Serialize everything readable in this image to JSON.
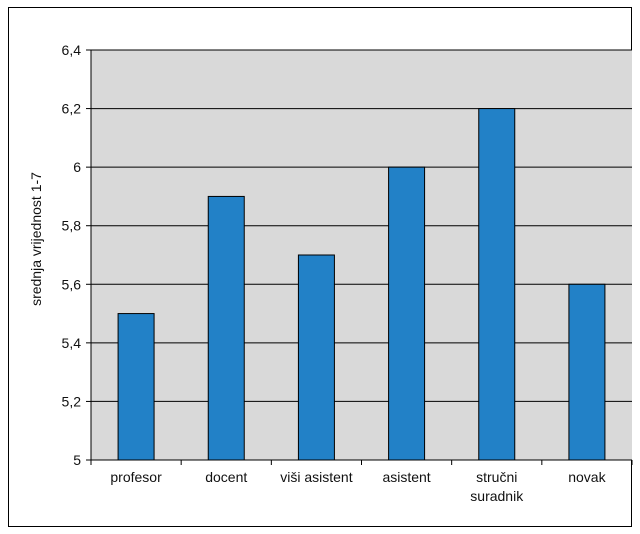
{
  "chart_data": {
    "type": "bar",
    "title": "",
    "xlabel": "",
    "ylabel": "srednja vrijednost 1-7",
    "categories": [
      [
        "profesor"
      ],
      [
        "docent"
      ],
      [
        "viši asistent"
      ],
      [
        "asistent"
      ],
      [
        "stručni",
        "suradnik"
      ],
      [
        "novak"
      ]
    ],
    "values": [
      5.5,
      5.9,
      5.7,
      6.0,
      6.2,
      5.6
    ],
    "ylim": [
      5,
      6.4
    ],
    "yticks": [
      "5",
      "5,2",
      "5,4",
      "5,6",
      "5,8",
      "6",
      "6,2",
      "6,4"
    ],
    "grid": true,
    "legend": "none",
    "colors": {
      "bar": "#2281c7",
      "bar_stroke": "#000000",
      "plot_background": "#d9d9d9",
      "gridline": "#000000"
    }
  }
}
